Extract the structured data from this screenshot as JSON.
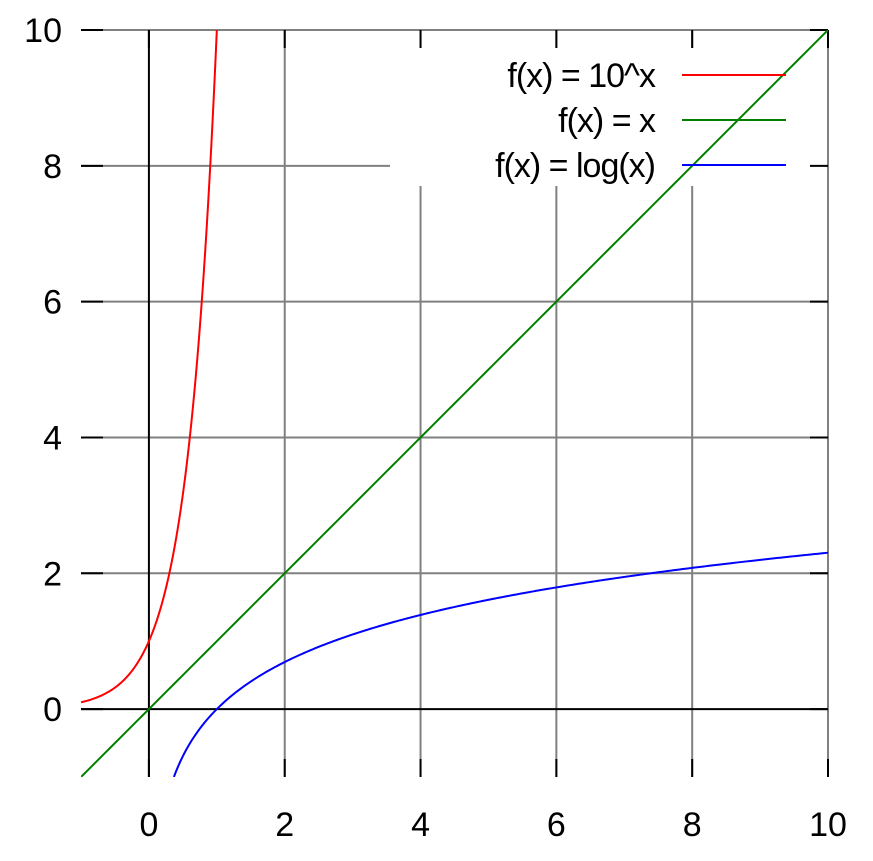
{
  "chart_data": {
    "type": "line",
    "title": "",
    "xlabel": "",
    "ylabel": "",
    "xlim": [
      -1,
      10
    ],
    "ylim": [
      -1,
      10
    ],
    "grid": true,
    "legend_position": "top-right",
    "x_ticks": [
      {
        "value": 0,
        "label": "0"
      },
      {
        "value": 2,
        "label": "2"
      },
      {
        "value": 4,
        "label": "4"
      },
      {
        "value": 6,
        "label": "6"
      },
      {
        "value": 8,
        "label": "8"
      },
      {
        "value": 10,
        "label": "10"
      }
    ],
    "y_ticks": [
      {
        "value": 0,
        "label": "0"
      },
      {
        "value": 2,
        "label": "2"
      },
      {
        "value": 4,
        "label": "4"
      },
      {
        "value": 6,
        "label": "6"
      },
      {
        "value": 8,
        "label": "8"
      },
      {
        "value": 10,
        "label": "10"
      }
    ],
    "series": [
      {
        "name": "f(x) = 10^x",
        "color": "#ff0000",
        "x": [
          -1,
          -0.8,
          -0.6,
          -0.4,
          -0.2,
          0,
          0.1,
          0.2,
          0.3,
          0.4,
          0.5,
          0.6,
          0.7,
          0.8,
          0.9,
          1
        ],
        "y": [
          0.1,
          0.158,
          0.251,
          0.398,
          0.631,
          1,
          1.259,
          1.585,
          1.995,
          2.512,
          3.162,
          3.981,
          5.012,
          6.31,
          7.943,
          10
        ]
      },
      {
        "name": "f(x) = x",
        "color": "#007f00",
        "x": [
          -1,
          10
        ],
        "y": [
          -1,
          10
        ]
      },
      {
        "name": "f(x) = log(x)",
        "color": "#0000ff",
        "x": [
          0.368,
          0.45,
          0.55,
          0.7,
          0.85,
          1,
          1.25,
          1.5,
          2,
          2.5,
          3,
          4,
          5,
          6,
          7,
          8,
          9,
          10
        ],
        "y": [
          -1,
          -0.799,
          -0.598,
          -0.357,
          -0.163,
          0,
          0.223,
          0.405,
          0.693,
          0.916,
          1.099,
          1.386,
          1.609,
          1.792,
          1.946,
          2.079,
          2.197,
          2.303
        ]
      }
    ]
  }
}
